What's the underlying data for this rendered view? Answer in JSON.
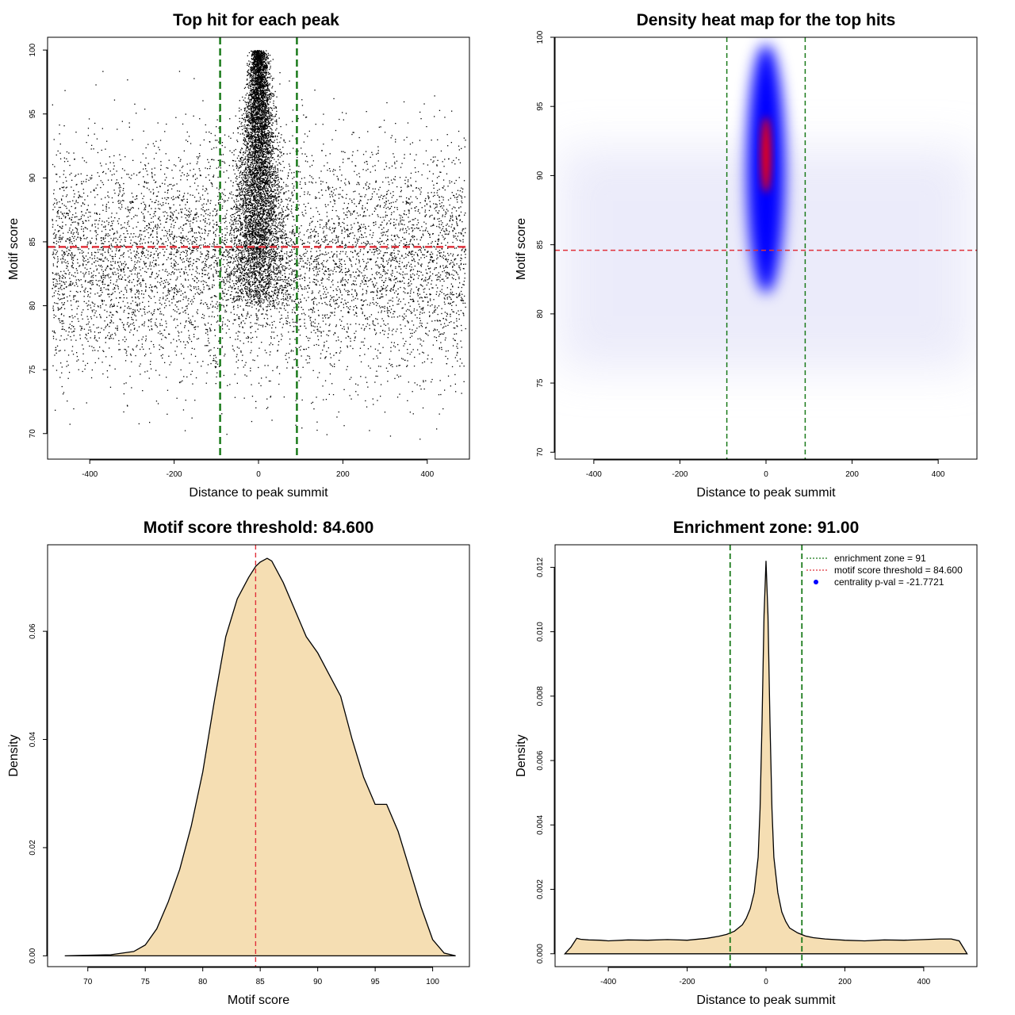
{
  "chart_data": [
    {
      "id": "scatter",
      "type": "scatter",
      "title": "Top hit for each peak",
      "xlabel": "Distance to peak summit",
      "ylabel": "Motif score",
      "xlim": [
        -500,
        500
      ],
      "ylim": [
        68,
        101
      ],
      "xticks": [
        -400,
        -200,
        0,
        200,
        400
      ],
      "yticks": [
        70,
        75,
        80,
        85,
        90,
        95,
        100
      ],
      "hlines": [
        84.6
      ],
      "vlines": [
        -91,
        91
      ],
      "line_colors": {
        "threshold": "#e0303a",
        "zone": "#1a7a1a"
      },
      "point_color": "#000000",
      "point_distribution": {
        "background": {
          "x_range": [
            -490,
            490
          ],
          "y_center": 83.5,
          "y_spread": 4.5
        },
        "central": {
          "x_center": 0,
          "x_spread": 18,
          "y_range": [
            80,
            100
          ]
        }
      }
    },
    {
      "id": "heatmap",
      "type": "heatmap",
      "title": "Density heat map for the top hits",
      "xlabel": "Distance to peak summit",
      "ylabel": "Motif score",
      "xlim": [
        -490,
        490
      ],
      "ylim": [
        69.5,
        100
      ],
      "xticks": [
        -400,
        -200,
        0,
        200,
        400
      ],
      "yticks": [
        70,
        75,
        80,
        85,
        90,
        95,
        100
      ],
      "hlines": [
        84.6
      ],
      "vlines": [
        -91,
        91
      ],
      "colors": {
        "low": "#ffffff",
        "mid": "#0000ff",
        "high": "#ff0000"
      },
      "hotspot": {
        "x": 0,
        "y_range": [
          82,
          100
        ],
        "peak_y": 91.5
      }
    },
    {
      "id": "score-density",
      "type": "area",
      "title": "Motif score threshold: 84.600",
      "xlabel": "Motif score",
      "ylabel": "Density",
      "xlim": [
        66.5,
        103.2
      ],
      "ylim": [
        -0.002,
        0.076
      ],
      "xticks": [
        70,
        75,
        80,
        85,
        90,
        95,
        100
      ],
      "yticks": [
        0.0,
        0.02,
        0.04,
        0.06
      ],
      "ytick_labels": [
        "0.00",
        "0.02",
        "0.04",
        "0.06"
      ],
      "vlines": [
        84.6
      ],
      "fill_color": "#f5deb3",
      "x": [
        68,
        70,
        72,
        74,
        75,
        76,
        77,
        78,
        79,
        80,
        81,
        82,
        83,
        84,
        84.6,
        85,
        85.6,
        86,
        87,
        88,
        89,
        90,
        91,
        92,
        93,
        94,
        95,
        96,
        97,
        98,
        99,
        100,
        101,
        102
      ],
      "values": [
        0.0,
        0.0001,
        0.0002,
        0.0008,
        0.002,
        0.005,
        0.01,
        0.016,
        0.024,
        0.034,
        0.047,
        0.059,
        0.066,
        0.07,
        0.072,
        0.0728,
        0.0735,
        0.073,
        0.069,
        0.064,
        0.059,
        0.056,
        0.052,
        0.048,
        0.04,
        0.033,
        0.028,
        0.028,
        0.023,
        0.016,
        0.009,
        0.003,
        0.0005,
        0.0
      ]
    },
    {
      "id": "distance-density",
      "type": "area",
      "title": "Enrichment zone: 91.00",
      "xlabel": "Distance to peak summit",
      "ylabel": "Density",
      "xlim": [
        -535,
        535
      ],
      "ylim": [
        -0.0004,
        0.0127
      ],
      "xticks": [
        -400,
        -200,
        0,
        200,
        400
      ],
      "yticks": [
        0.0,
        0.002,
        0.004,
        0.006,
        0.008,
        0.01,
        0.012
      ],
      "ytick_labels": [
        "0.000",
        "0.002",
        "0.004",
        "0.006",
        "0.008",
        "0.010",
        "0.012"
      ],
      "vlines": [
        -91,
        91
      ],
      "fill_color": "#f5deb3",
      "x": [
        -510,
        -495,
        -480,
        -470,
        -450,
        -420,
        -400,
        -350,
        -300,
        -250,
        -200,
        -150,
        -120,
        -100,
        -80,
        -60,
        -50,
        -40,
        -30,
        -20,
        -15,
        -10,
        -5,
        0,
        5,
        10,
        15,
        20,
        30,
        40,
        50,
        60,
        80,
        100,
        120,
        150,
        200,
        250,
        300,
        350,
        400,
        440,
        470,
        490,
        500,
        510
      ],
      "values": [
        0.0,
        0.0002,
        0.00048,
        0.00045,
        0.00043,
        0.00042,
        0.0004,
        0.00043,
        0.00042,
        0.00044,
        0.00042,
        0.00048,
        0.00054,
        0.0006,
        0.0007,
        0.0009,
        0.0011,
        0.0014,
        0.0019,
        0.003,
        0.0045,
        0.0072,
        0.0105,
        0.0122,
        0.0105,
        0.0072,
        0.0045,
        0.003,
        0.0019,
        0.0013,
        0.001,
        0.0008,
        0.00065,
        0.00055,
        0.0005,
        0.00046,
        0.00042,
        0.0004,
        0.00043,
        0.00042,
        0.00044,
        0.00046,
        0.00046,
        0.0004,
        0.0002,
        0.0
      ],
      "legend": {
        "position": "top-right",
        "entries": [
          {
            "label": "enrichment zone = 91",
            "color": "#1a7a1a",
            "style": "dotted"
          },
          {
            "label": "motif score threshold = 84.600",
            "color": "#e0303a",
            "style": "dotted"
          },
          {
            "label": "centrality p-val = -21.7721",
            "color": "#0000ff",
            "style": "point"
          }
        ]
      }
    }
  ]
}
